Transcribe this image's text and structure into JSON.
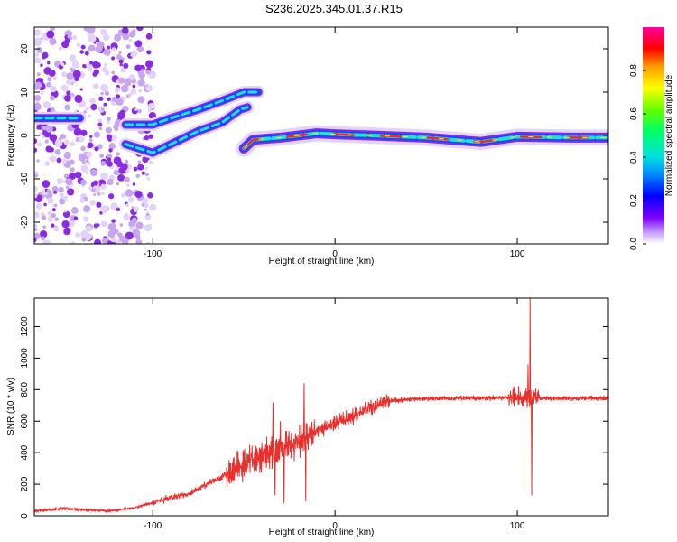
{
  "title": "S236.2025.345.01.37.R15",
  "colors": {
    "snr_line": "#e8302c",
    "axis": "#000000"
  },
  "chart_data": [
    {
      "type": "heatmap",
      "name": "spectrogram",
      "xlabel": "Height of straight line (km)",
      "ylabel": "Frequency (Hz)",
      "xlim": [
        -165,
        150
      ],
      "ylim": [
        -25,
        25
      ],
      "xticks": [
        -100,
        0,
        100
      ],
      "yticks": [
        -20,
        -10,
        0,
        10,
        20
      ],
      "noise_region_x": [
        -165,
        -100
      ],
      "ridges": [
        {
          "name": "upper-left-band",
          "points": [
            [
              -165,
              4
            ],
            [
              -150,
              4
            ],
            [
              -140,
              4
            ]
          ]
        },
        {
          "name": "rising-band-a",
          "points": [
            [
              -115,
              2.5
            ],
            [
              -100,
              2.5
            ],
            [
              -90,
              4
            ],
            [
              -75,
              6
            ],
            [
              -62,
              8
            ],
            [
              -50,
              10
            ],
            [
              -42,
              10
            ]
          ]
        },
        {
          "name": "rising-band-b",
          "points": [
            [
              -115,
              -2
            ],
            [
              -100,
              -4
            ],
            [
              -90,
              -2
            ],
            [
              -75,
              1
            ],
            [
              -62,
              3
            ],
            [
              -52,
              6
            ],
            [
              -48,
              6.5
            ]
          ]
        },
        {
          "name": "main-carrier",
          "points": [
            [
              -50,
              -3
            ],
            [
              -45,
              -1
            ],
            [
              -30,
              -0.5
            ],
            [
              -10,
              0.5
            ],
            [
              0,
              0.3
            ],
            [
              20,
              0
            ],
            [
              50,
              -0.5
            ],
            [
              80,
              -1.5
            ],
            [
              100,
              -0.3
            ],
            [
              130,
              -0.5
            ],
            [
              150,
              -0.5
            ]
          ]
        }
      ],
      "colorbar": {
        "label": "Normalized spectral amplitude",
        "ticks": [
          0.0,
          0.2,
          0.4,
          0.6,
          0.8
        ],
        "ticklabels": [
          "0.0",
          "0.2",
          "0.4",
          "0.6",
          "0.8"
        ],
        "range": [
          0,
          1
        ]
      }
    },
    {
      "type": "line",
      "name": "snr",
      "xlabel": "Height of straight line (km)",
      "ylabel": "SNR (10 * v/v)",
      "xlim": [
        -165,
        150
      ],
      "ylim": [
        0,
        1380
      ],
      "xticks": [
        -100,
        0,
        100
      ],
      "yticks": [
        0,
        200,
        400,
        600,
        800,
        1000,
        1200
      ],
      "envelope": [
        [
          -165,
          30
        ],
        [
          -150,
          45
        ],
        [
          -140,
          40
        ],
        [
          -125,
          30
        ],
        [
          -110,
          50
        ],
        [
          -95,
          100
        ],
        [
          -80,
          140
        ],
        [
          -70,
          200
        ],
        [
          -60,
          260
        ],
        [
          -50,
          330
        ],
        [
          -40,
          380
        ],
        [
          -30,
          420
        ],
        [
          -20,
          470
        ],
        [
          -10,
          540
        ],
        [
          0,
          590
        ],
        [
          10,
          630
        ],
        [
          20,
          690
        ],
        [
          30,
          730
        ],
        [
          40,
          740
        ],
        [
          60,
          745
        ],
        [
          80,
          745
        ],
        [
          100,
          750
        ],
        [
          110,
          745
        ],
        [
          130,
          745
        ],
        [
          150,
          745
        ]
      ],
      "spikes": [
        [
          -34,
          720
        ],
        [
          -33,
          130
        ],
        [
          -30,
          600
        ],
        [
          -28,
          80
        ],
        [
          -17,
          840
        ],
        [
          -16,
          90
        ],
        [
          107,
          1380
        ],
        [
          108,
          130
        ],
        [
          106,
          960
        ]
      ]
    }
  ]
}
